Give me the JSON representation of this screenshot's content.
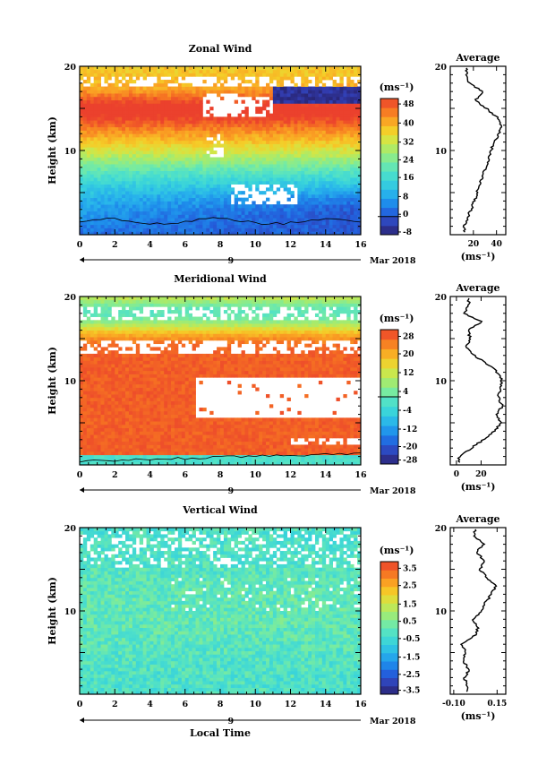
{
  "figure": {
    "xlabel_bottom": "Local Time",
    "date_label": "Mar 2018",
    "day_label": "9"
  },
  "chart_data": [
    {
      "type": "heatmap",
      "title": "Zonal Wind",
      "ylabel": "Height (km)",
      "xlabel": "",
      "xlim": [
        0,
        16
      ],
      "ylim": [
        0,
        20
      ],
      "x_ticks": [
        0,
        2,
        4,
        6,
        8,
        10,
        12,
        14,
        16
      ],
      "y_ticks": [
        10,
        20
      ],
      "colorbar": {
        "unit": "(ms⁻¹)",
        "range": [
          -8,
          52
        ],
        "step": 4,
        "tick_labels": [
          "48",
          "40",
          "32",
          "24",
          "16",
          "8",
          "0",
          "-8"
        ],
        "contour": 0
      },
      "average_profile": {
        "title": "Average",
        "unit": "(ms⁻¹)",
        "xlim": [
          0,
          48
        ],
        "x_ticks": [
          "20",
          "40"
        ],
        "height_km": [
          1,
          2,
          3,
          4,
          5,
          6,
          7,
          8,
          9,
          10,
          11,
          12,
          13,
          14,
          15,
          16,
          17,
          18,
          19
        ],
        "values": [
          12,
          15,
          18,
          21,
          23,
          25,
          28,
          31,
          33,
          35,
          38,
          42,
          44,
          40,
          31,
          22,
          28,
          16,
          14
        ]
      }
    },
    {
      "type": "heatmap",
      "title": "Meridional Wind",
      "ylabel": "Height (km)",
      "xlabel": "",
      "xlim": [
        0,
        16
      ],
      "ylim": [
        0,
        20
      ],
      "x_ticks": [
        0,
        2,
        4,
        6,
        8,
        10,
        12,
        14,
        16
      ],
      "y_ticks": [
        10,
        20
      ],
      "colorbar": {
        "unit": "(ms⁻¹)",
        "range": [
          -28,
          28
        ],
        "step": 4,
        "tick_labels": [
          "28",
          "20",
          "12",
          "4",
          "-4",
          "-12",
          "-20",
          "-28"
        ],
        "contour": 0
      },
      "average_profile": {
        "title": "Average",
        "unit": "(ms⁻¹)",
        "xlim": [
          -5,
          40
        ],
        "x_ticks": [
          "0",
          "20"
        ],
        "height_km": [
          1,
          2,
          3,
          4,
          5,
          6,
          7,
          8,
          9,
          10,
          11,
          12,
          13,
          14,
          15,
          16,
          17,
          18,
          19
        ],
        "values": [
          2,
          12,
          22,
          31,
          36,
          33,
          37,
          34,
          36,
          37,
          33,
          25,
          14,
          8,
          11,
          10,
          20,
          6,
          10
        ]
      }
    },
    {
      "type": "heatmap",
      "title": "Vertical Wind",
      "ylabel": "Height (km)",
      "xlabel": "Local Time",
      "xlim": [
        0,
        16
      ],
      "ylim": [
        0,
        20
      ],
      "x_ticks": [
        0,
        2,
        4,
        6,
        8,
        10,
        12,
        14,
        16
      ],
      "y_ticks": [
        10,
        20
      ],
      "colorbar": {
        "unit": "(ms⁻¹)",
        "range": [
          -4,
          4
        ],
        "step": 0.5,
        "tick_labels": [
          "3.5",
          "2.5",
          "1.5",
          "0.5",
          "-0.5",
          "-1.5",
          "-2.5",
          "-3.5"
        ]
      },
      "average_profile": {
        "title": "Average",
        "unit": "(ms⁻¹)",
        "xlim": [
          -0.12,
          0.2
        ],
        "x_ticks": [
          "-0.10",
          "0.15"
        ],
        "height_km": [
          1,
          2,
          3,
          4,
          5,
          6,
          7,
          8,
          9,
          10,
          11,
          12,
          13,
          14,
          15,
          16,
          17,
          18,
          19
        ],
        "values": [
          -0.02,
          -0.04,
          -0.01,
          -0.05,
          -0.03,
          -0.06,
          0.02,
          0.04,
          0.01,
          0.06,
          0.08,
          0.12,
          0.14,
          0.09,
          0.05,
          0.08,
          0.03,
          0.07,
          0.02
        ]
      }
    }
  ]
}
